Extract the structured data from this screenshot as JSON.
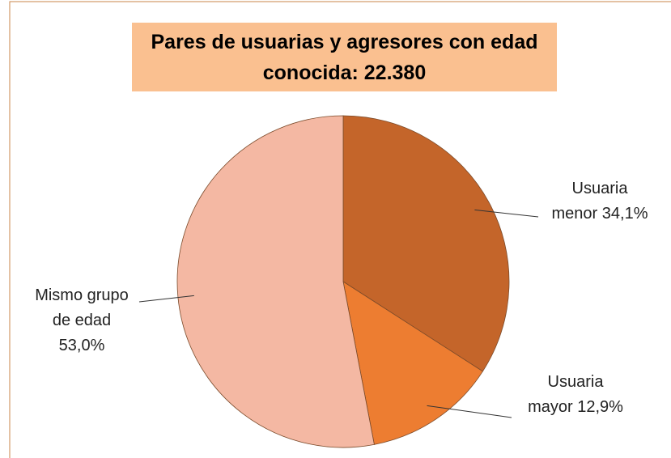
{
  "chart_data": {
    "type": "pie",
    "title": "Pares de usuarias y agresores con edad conocida: 22.380",
    "categories": [
      "Usuaria menor",
      "Usuaria mayor",
      "Mismo grupo de edad"
    ],
    "values": [
      34.1,
      12.9,
      53.0
    ],
    "value_labels": [
      "34,1%",
      "12,9%",
      "53,0%"
    ],
    "colors": [
      "#c4652a",
      "#ed7d31",
      "#f4b8a3"
    ]
  }
}
